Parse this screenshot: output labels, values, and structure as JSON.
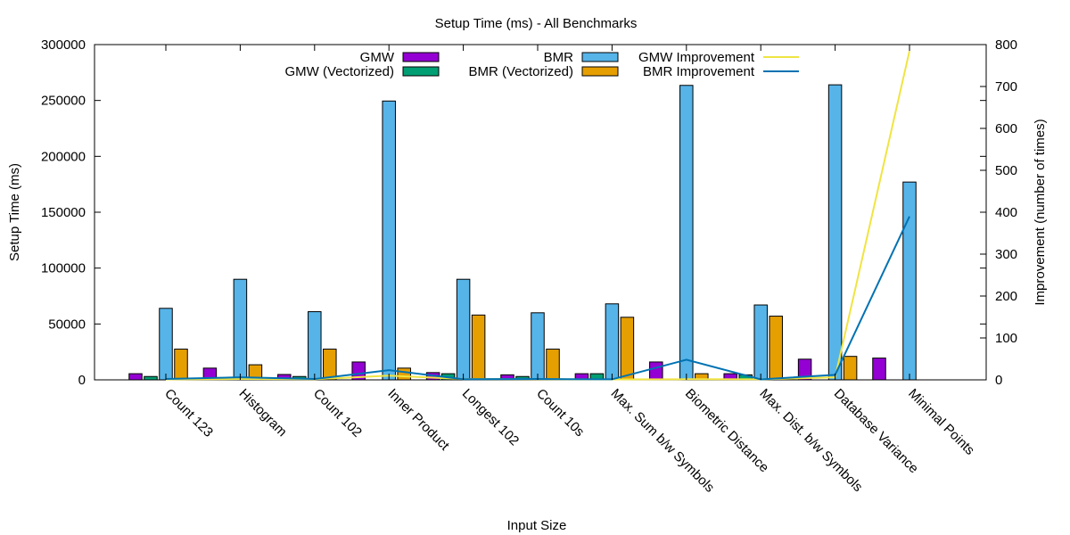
{
  "chart_data": {
    "type": "bar",
    "title": "Setup Time (ms) - All Benchmarks",
    "xlabel": "Input Size",
    "ylabel": "Setup Time (ms)",
    "y2label": "Improvement (number of times)",
    "ylim": [
      0,
      300000
    ],
    "y2lim": [
      0,
      800
    ],
    "yticks": [
      "0",
      "50000",
      "100000",
      "150000",
      "200000",
      "250000",
      "300000"
    ],
    "y2ticks": [
      "0",
      "100",
      "200",
      "300",
      "400",
      "500",
      "600",
      "700",
      "800"
    ],
    "categories": [
      "Count 123",
      "Histogram",
      "Count 102",
      "Inner Product",
      "Longest 102",
      "Count 10s",
      "Max. Sum b/w Symbols",
      "Biometric Distance",
      "Max. Dist. b/w Symbols",
      "Database Variance",
      "Minimal Points"
    ],
    "series": [
      {
        "name": "GMW",
        "color": "#9400d3",
        "values": [
          5500,
          10500,
          4800,
          16000,
          6500,
          4500,
          5500,
          16000,
          5500,
          18500,
          19500
        ]
      },
      {
        "name": "GMW (Vectorized)",
        "color": "#009e73",
        "values": [
          3000,
          0,
          3000,
          0,
          5500,
          3000,
          5500,
          0,
          4500,
          0,
          0
        ]
      },
      {
        "name": "BMR",
        "color": "#56b4e9",
        "values": [
          64000,
          90000,
          61000,
          249500,
          90000,
          60000,
          68000,
          263500,
          67000,
          264000,
          177000
        ]
      },
      {
        "name": "BMR (Vectorized)",
        "color": "#e69f00",
        "values": [
          27500,
          13500,
          27500,
          10500,
          58000,
          27500,
          56000,
          5500,
          57000,
          21000,
          0
        ]
      }
    ],
    "lines": [
      {
        "name": "GMW Improvement",
        "color": "#f0e442",
        "axis": "y2",
        "values": [
          1,
          2,
          1.5,
          10,
          2,
          1.5,
          1,
          1.5,
          1.2,
          6,
          785
        ]
      },
      {
        "name": "BMR Improvement",
        "color": "#0072b2",
        "axis": "y2",
        "values": [
          2,
          6,
          2,
          23,
          1.5,
          2,
          1.2,
          48,
          1.2,
          12,
          390
        ]
      }
    ],
    "legend_position": "top"
  }
}
